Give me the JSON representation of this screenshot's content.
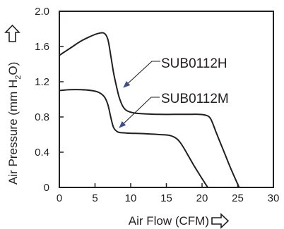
{
  "chart_data": {
    "type": "line",
    "xlabel": "Air Flow (CFM)",
    "ylabel_parts": [
      "Air Pressure (mm H",
      "2",
      "O)"
    ],
    "xlim": [
      0,
      30
    ],
    "ylim": [
      0,
      2.0
    ],
    "x_ticks": [
      "0",
      "5",
      "10",
      "15",
      "20",
      "25",
      "30"
    ],
    "y_ticks": [
      "0",
      "0.4",
      "0.8",
      "1.2",
      "1.6",
      "2.0"
    ],
    "grid": false,
    "series": [
      {
        "name": "SUB0112H",
        "x": [
          0,
          1.5,
          3,
          4.5,
          5.5,
          6.3,
          6.8,
          7.2,
          7.6,
          8.0,
          8.4,
          8.9,
          9.5,
          10.5,
          12,
          14,
          16,
          18,
          19.5,
          20.5,
          21.2,
          22,
          23,
          24,
          25.2
        ],
        "y": [
          1.5,
          1.58,
          1.66,
          1.72,
          1.75,
          1.75,
          1.68,
          1.5,
          1.3,
          1.15,
          1.02,
          0.92,
          0.87,
          0.845,
          0.835,
          0.83,
          0.83,
          0.83,
          0.83,
          0.82,
          0.78,
          0.62,
          0.42,
          0.22,
          0.0
        ]
      },
      {
        "name": "SUB0112M",
        "x": [
          0,
          1.5,
          3,
          4.5,
          5.5,
          6.3,
          6.8,
          7.2,
          7.6,
          8.2,
          9,
          10,
          12,
          14,
          15.5,
          16.5,
          17.2,
          18,
          19,
          20,
          20.8
        ],
        "y": [
          1.1,
          1.11,
          1.11,
          1.1,
          1.08,
          1.03,
          0.94,
          0.8,
          0.68,
          0.63,
          0.62,
          0.615,
          0.61,
          0.6,
          0.59,
          0.55,
          0.48,
          0.37,
          0.23,
          0.1,
          0.0
        ]
      }
    ],
    "annotations": [
      {
        "text": "SUB0112H",
        "series": "SUB0112H"
      },
      {
        "text": "SUB0112M",
        "series": "SUB0112M"
      }
    ],
    "colors": {
      "line": "#231f20",
      "arrow": "#3a4f8f"
    }
  }
}
